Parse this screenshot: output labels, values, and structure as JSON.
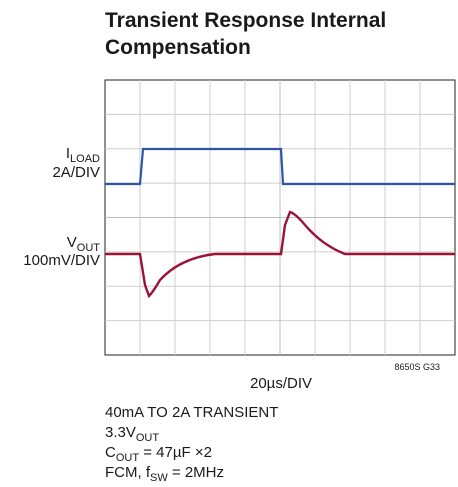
{
  "chart_data": {
    "type": "oscilloscope",
    "title": [
      "Transient Response Internal",
      "Compensation"
    ],
    "load_label": [
      "I",
      "LOAD"
    ],
    "load_scale": "2A/DIV",
    "vout_label": [
      "V",
      "OUT"
    ],
    "vout_scale": "100mV/DIV",
    "time_scale": "20µs/DIV",
    "figure_code": "8650S G33",
    "notes": [
      [
        "40mA TO 2A TRANSIENT"
      ],
      [
        "3.3V",
        "OUT"
      ],
      [
        "C",
        "OUT",
        " = 47µF ×2"
      ],
      [
        "FCM, f",
        "SW",
        " = 2MHz"
      ]
    ]
  }
}
